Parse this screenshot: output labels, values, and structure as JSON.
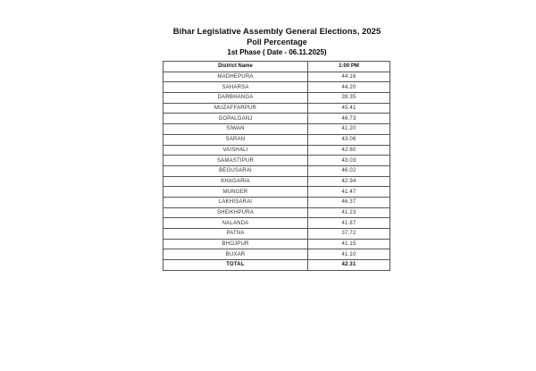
{
  "title": "Bihar Legislative Assembly General Elections, 2025",
  "subtitle": "Poll Percentage",
  "phase": "1st Phase ( Date - 06.11.2025)",
  "table": {
    "headers": [
      "District Name",
      "1:00 PM"
    ],
    "rows": [
      [
        "MADHEPURA",
        "44.16"
      ],
      [
        "SAHARSA",
        "44.20"
      ],
      [
        "DARBHANGA",
        "39.35"
      ],
      [
        "MUZAFFARPUR",
        "45.41"
      ],
      [
        "GOPALGANJ",
        "46.73"
      ],
      [
        "SIWAN",
        "41.20"
      ],
      [
        "SARAN",
        "43.06"
      ],
      [
        "VAISHALI",
        "42.60"
      ],
      [
        "SAMASTIPUR",
        "43.03"
      ],
      [
        "BEGUSARAI",
        "46.02"
      ],
      [
        "KHAGARIA",
        "42.94"
      ],
      [
        "MUNGER",
        "41.47"
      ],
      [
        "LAKHISARAI",
        "46.37"
      ],
      [
        "SHEIKHPURA",
        "41.23"
      ],
      [
        "NALANDA",
        "41.87"
      ],
      [
        "PATNA",
        "37.72"
      ],
      [
        "BHOJPUR",
        "41.15"
      ],
      [
        "BUXAR",
        "41.10"
      ]
    ],
    "total": [
      "TOTAL",
      "42.31"
    ]
  }
}
